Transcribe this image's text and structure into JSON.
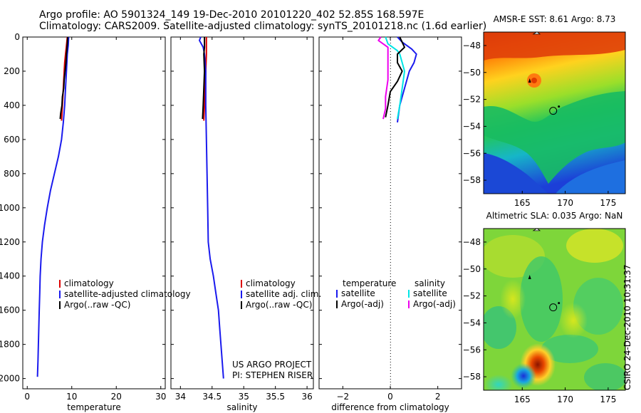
{
  "header": {
    "line1": "Argo profile: AO 5901324_149 19-Dec-2010 20101220_402 52.85S 168.597E",
    "line2": "Climatology: CARS2009. Satellite-adjusted climatology: synTS_20101218.nc (1.6d earlier)"
  },
  "credit": "CSIRO 24-Dec-2010 10:31:37",
  "colors": {
    "red": "#dd0000",
    "blue": "#1a1aee",
    "black": "#000000",
    "cyan": "#00e5e5",
    "magenta": "#ee00ee"
  },
  "chart_data": [
    {
      "type": "line",
      "xlabel": "temperature",
      "xlim": [
        -1,
        31
      ],
      "ylim": [
        2060,
        0
      ],
      "xticks": [
        0,
        10,
        20,
        30
      ],
      "yticks": [
        0,
        200,
        400,
        600,
        800,
        1000,
        1200,
        1400,
        1600,
        1800,
        2000
      ],
      "legend": {
        "position": "bottom-right",
        "entries": [
          "climatology",
          "satellite-adjusted climatology",
          "Argo(..raw -QC)"
        ]
      },
      "series": [
        {
          "name": "climatology",
          "color": "red",
          "points": [
            [
              9.0,
              0
            ],
            [
              8.8,
              50
            ],
            [
              8.6,
              100
            ],
            [
              8.4,
              150
            ],
            [
              8.3,
              200
            ],
            [
              8.2,
              250
            ],
            [
              8.1,
              300
            ],
            [
              8.0,
              350
            ],
            [
              7.9,
              400
            ],
            [
              7.8,
              450
            ],
            [
              7.7,
              490
            ]
          ]
        },
        {
          "name": "satellite-adjusted climatology",
          "color": "blue",
          "points": [
            [
              9.3,
              0
            ],
            [
              9.2,
              50
            ],
            [
              9.0,
              100
            ],
            [
              8.8,
              200
            ],
            [
              8.6,
              300
            ],
            [
              8.4,
              400
            ],
            [
              8.1,
              500
            ],
            [
              7.7,
              600
            ],
            [
              7.0,
              700
            ],
            [
              6.1,
              800
            ],
            [
              5.2,
              900
            ],
            [
              4.5,
              1000
            ],
            [
              3.9,
              1100
            ],
            [
              3.4,
              1200
            ],
            [
              3.1,
              1300
            ],
            [
              2.9,
              1400
            ],
            [
              2.8,
              1500
            ],
            [
              2.7,
              1600
            ],
            [
              2.6,
              1700
            ],
            [
              2.5,
              1800
            ],
            [
              2.4,
              1900
            ],
            [
              2.3,
              1990
            ]
          ]
        },
        {
          "name": "Argo(..raw -QC)",
          "color": "black",
          "points": [
            [
              9.1,
              0
            ],
            [
              9.0,
              40
            ],
            [
              8.8,
              100
            ],
            [
              8.7,
              150
            ],
            [
              8.5,
              200
            ],
            [
              8.3,
              250
            ],
            [
              8.2,
              300
            ],
            [
              7.9,
              350
            ],
            [
              7.8,
              400
            ],
            [
              7.5,
              450
            ],
            [
              7.4,
              480
            ]
          ]
        }
      ]
    },
    {
      "type": "line",
      "xlabel": "salinity",
      "xlim": [
        33.85,
        36.1
      ],
      "ylim": [
        2060,
        0
      ],
      "xticks": [
        34,
        34.5,
        35,
        35.5,
        36
      ],
      "xticklabels": [
        "34",
        "34.5",
        "35",
        "35.5",
        "36"
      ],
      "legend": {
        "position": "bottom-right",
        "entries": [
          "climatology",
          "satellite adj. clim.",
          "Argo(..raw -QC)"
        ]
      },
      "annotation": [
        "US ARGO PROJECT",
        "PI: STEPHEN RISER"
      ],
      "series": [
        {
          "name": "climatology",
          "color": "red",
          "points": [
            [
              34.41,
              0
            ],
            [
              34.41,
              100
            ],
            [
              34.4,
              200
            ],
            [
              34.39,
              300
            ],
            [
              34.38,
              400
            ],
            [
              34.37,
              490
            ]
          ]
        },
        {
          "name": "satellite adj. clim.",
          "color": "blue",
          "points": [
            [
              34.32,
              0
            ],
            [
              34.3,
              20
            ],
            [
              34.33,
              40
            ],
            [
              34.36,
              60
            ],
            [
              34.38,
              100
            ],
            [
              34.4,
              200
            ],
            [
              34.4,
              400
            ],
            [
              34.41,
              600
            ],
            [
              34.42,
              800
            ],
            [
              34.43,
              1000
            ],
            [
              34.44,
              1200
            ],
            [
              34.47,
              1300
            ],
            [
              34.52,
              1400
            ],
            [
              34.56,
              1500
            ],
            [
              34.6,
              1600
            ],
            [
              34.62,
              1700
            ],
            [
              34.64,
              1800
            ],
            [
              34.66,
              1900
            ],
            [
              34.68,
              2000
            ]
          ]
        },
        {
          "name": "Argo(..raw -QC)",
          "color": "black",
          "points": [
            [
              34.38,
              0
            ],
            [
              34.38,
              60
            ],
            [
              34.37,
              100
            ],
            [
              34.38,
              200
            ],
            [
              34.37,
              300
            ],
            [
              34.36,
              400
            ],
            [
              34.35,
              480
            ]
          ]
        }
      ]
    },
    {
      "type": "line",
      "xlabel": "difference from climatology",
      "xlim": [
        -3.0,
        3.0
      ],
      "ylim": [
        2060,
        0
      ],
      "xticks": [
        -2,
        0,
        2
      ],
      "xticklabels": [
        "−2",
        "0",
        "2"
      ],
      "legend": {
        "position": "bottom-left",
        "group_titles": [
          "temperature",
          "salinity"
        ],
        "entries": [
          "satellite",
          "Argo(-adj)",
          "satellite",
          "Argo(-adj)"
        ]
      },
      "series": [
        {
          "name": "satellite",
          "group": "temperature",
          "color": "blue",
          "points": [
            [
              0.3,
              0
            ],
            [
              0.5,
              30
            ],
            [
              0.9,
              70
            ],
            [
              1.1,
              100
            ],
            [
              1.0,
              150
            ],
            [
              0.8,
              200
            ],
            [
              0.6,
              300
            ],
            [
              0.4,
              400
            ],
            [
              0.3,
              500
            ]
          ]
        },
        {
          "name": "satellite",
          "group": "salinity",
          "color": "cyan",
          "points": [
            [
              -0.2,
              0
            ],
            [
              -0.1,
              40
            ],
            [
              0.3,
              80
            ],
            [
              0.4,
              100
            ],
            [
              0.5,
              150
            ],
            [
              0.6,
              200
            ],
            [
              0.5,
              300
            ],
            [
              0.4,
              400
            ],
            [
              0.3,
              480
            ]
          ]
        },
        {
          "name": "Argo(-adj)",
          "group": "temperature",
          "color": "black",
          "points": [
            [
              0.4,
              0
            ],
            [
              0.6,
              60
            ],
            [
              0.3,
              100
            ],
            [
              0.3,
              150
            ],
            [
              0.5,
              200
            ],
            [
              0.3,
              260
            ],
            [
              0.0,
              320
            ],
            [
              -0.1,
              400
            ],
            [
              -0.2,
              470
            ]
          ]
        },
        {
          "name": "Argo(-adj)",
          "group": "salinity",
          "color": "magenta",
          "points": [
            [
              -0.4,
              0
            ],
            [
              -0.5,
              20
            ],
            [
              -0.1,
              60
            ],
            [
              -0.1,
              150
            ],
            [
              -0.1,
              250
            ],
            [
              -0.2,
              350
            ],
            [
              -0.2,
              420
            ],
            [
              -0.3,
              480
            ]
          ]
        }
      ]
    },
    {
      "type": "heatmap",
      "title": "AMSR-E SST: 8.61  Argo: 8.73",
      "xlim": [
        160.5,
        177
      ],
      "ylim": [
        -59,
        -47
      ],
      "xticks": [
        165,
        170,
        175
      ],
      "yticks": [
        -48,
        -50,
        -52,
        -54,
        -56,
        -58
      ],
      "marker": {
        "lon": 168.6,
        "lat": -52.85
      }
    },
    {
      "type": "heatmap",
      "title": "Altimetric SLA: 0.035  Argo: NaN",
      "xlim": [
        160.5,
        177
      ],
      "ylim": [
        -59,
        -47
      ],
      "xticks": [
        165,
        170,
        175
      ],
      "yticks": [
        -48,
        -50,
        -52,
        -54,
        -56,
        -58
      ],
      "marker": {
        "lon": 168.6,
        "lat": -52.85
      }
    }
  ]
}
